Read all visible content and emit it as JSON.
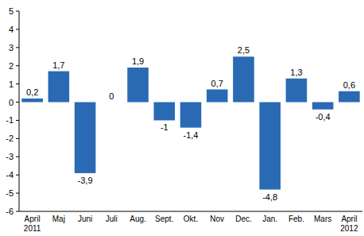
{
  "chart_data": {
    "type": "bar",
    "categories": [
      "April 2011",
      "Maj",
      "Juni",
      "Juli",
      "Aug.",
      "Sept.",
      "Okt.",
      "Nov",
      "Dec.",
      "Jan.",
      "Feb.",
      "Mars",
      "April 2012"
    ],
    "values": [
      0.2,
      1.7,
      -3.9,
      0,
      1.9,
      -1,
      -1.4,
      0.7,
      2.5,
      -4.8,
      1.3,
      -0.4,
      0.6
    ],
    "value_labels": [
      "0,2",
      "1,7",
      "-3,9",
      "0",
      "1,9",
      "-1",
      "-1,4",
      "0,7",
      "2,5",
      "-4,8",
      "1,3",
      "-0,4",
      "0,6"
    ],
    "data_labels": true,
    "color": "#2a6ab4",
    "ylim": [
      -6,
      5
    ],
    "yticks": [
      -6,
      -5,
      -4,
      -3,
      -2,
      -1,
      0,
      1,
      2,
      3,
      4,
      5
    ],
    "grid": false
  }
}
